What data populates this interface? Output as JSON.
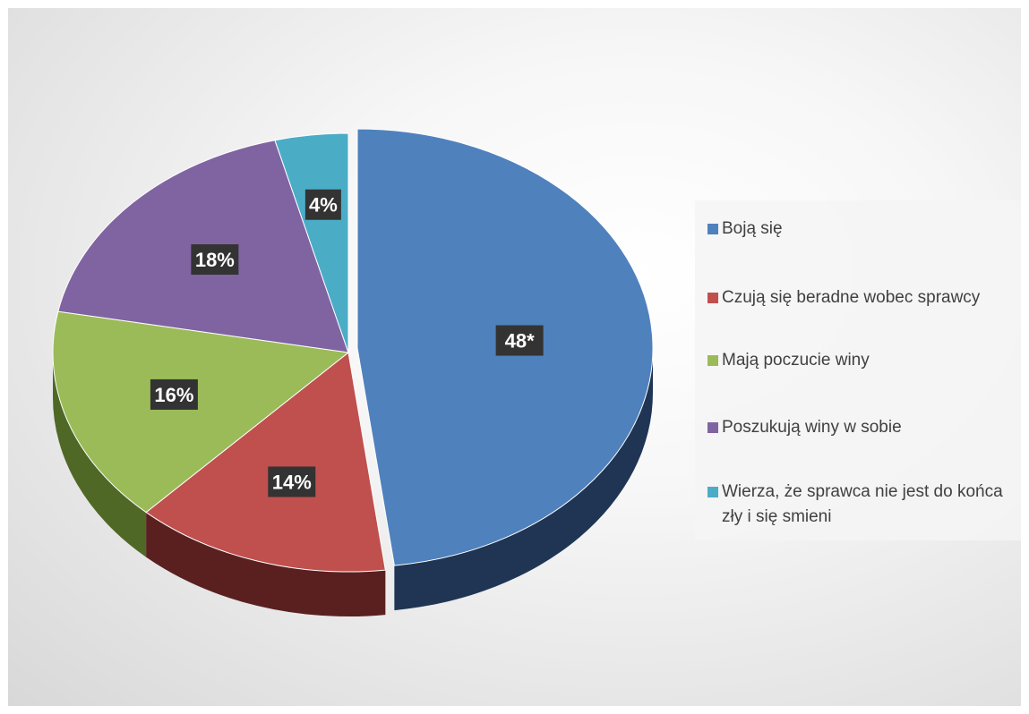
{
  "chart_data": {
    "type": "pie",
    "title": "",
    "categories": [
      "Boją się",
      "Czują się beradne wobec sprawcy",
      "Mają poczucie winy",
      "Poszukują winy w sobie",
      "Wierza, że sprawca nie jest do końca zły i się smieni"
    ],
    "values": [
      48,
      14,
      16,
      18,
      4
    ],
    "data_labels": [
      "48*",
      "14%",
      "16%",
      "18%",
      "4%"
    ],
    "colors": [
      "#4f81bd",
      "#c0504d",
      "#9bbb59",
      "#8064a2",
      "#4bacc6"
    ],
    "side_colors": [
      "#1f3553",
      "#5a2020",
      "#4f6826",
      "#3f2f57",
      "#1f5a6c"
    ],
    "legend_position": "right",
    "exploded_slice": "Boją się",
    "style": "3d"
  }
}
